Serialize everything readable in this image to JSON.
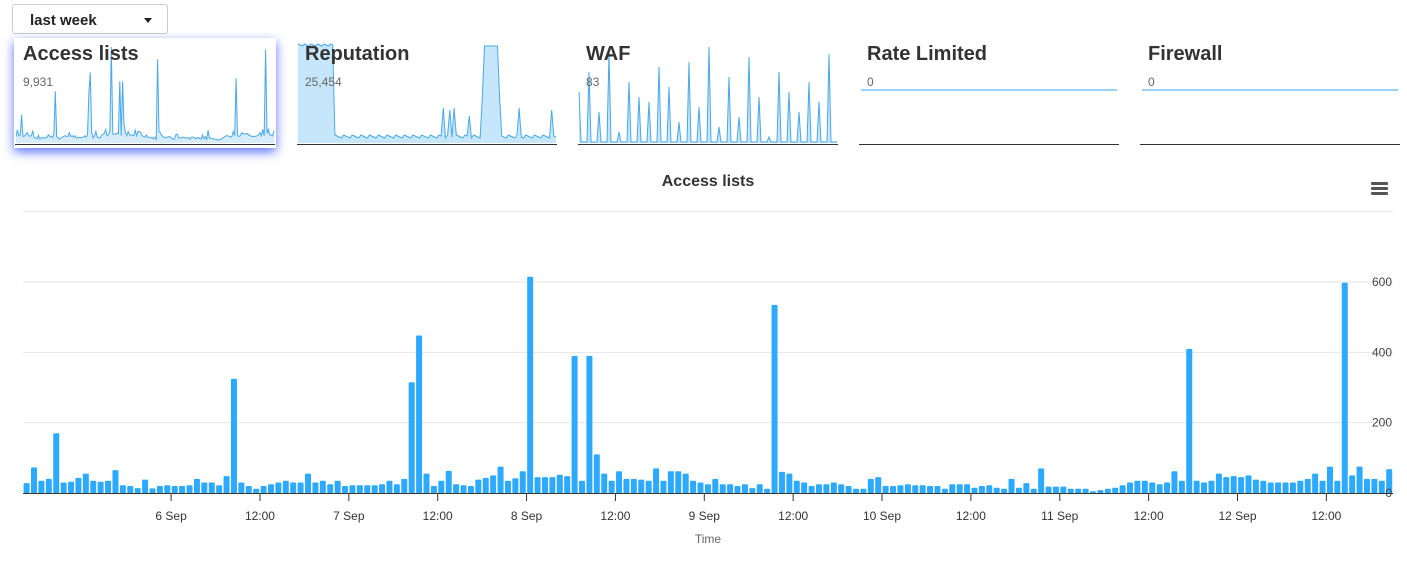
{
  "period_select": {
    "selected": "last week"
  },
  "cards": [
    {
      "title": "Access lists",
      "value": "9,931"
    },
    {
      "title": "Reputation",
      "value": "25,454"
    },
    {
      "title": "WAF",
      "value": "83"
    },
    {
      "title": "Rate Limited",
      "value": "0"
    },
    {
      "title": "Firewall",
      "value": "0"
    }
  ],
  "colors": {
    "accent": "#2daaff",
    "fill": "#c6e6fb",
    "line": "#4aa8e8",
    "selected_shadow": "#2846ff"
  },
  "icons": {
    "menu": "hamburger-menu-icon",
    "dropdown": "caret-down-icon"
  },
  "chart_data": {
    "type": "bar",
    "title": "Access lists",
    "xlabel": "Time",
    "ylabel": "",
    "ylim": [
      0,
      800
    ],
    "yticks": [
      0,
      200,
      400,
      600
    ],
    "y_axis_position": "right",
    "grid": true,
    "x_tick_labels": [
      "6 Sep",
      "12:00",
      "7 Sep",
      "12:00",
      "8 Sep",
      "12:00",
      "9 Sep",
      "12:00",
      "10 Sep",
      "12:00",
      "11 Sep",
      "12:00",
      "12 Sep",
      "12:00"
    ],
    "x_start": "2020-09-05 04:00",
    "interval_hours": 1,
    "values": [
      28,
      73,
      35,
      40,
      170,
      30,
      32,
      43,
      55,
      35,
      32,
      35,
      65,
      22,
      20,
      14,
      38,
      13,
      20,
      22,
      20,
      20,
      22,
      40,
      30,
      30,
      22,
      48,
      325,
      30,
      20,
      12,
      20,
      25,
      30,
      35,
      30,
      30,
      55,
      30,
      35,
      25,
      35,
      20,
      22,
      22,
      22,
      22,
      25,
      35,
      25,
      40,
      315,
      448,
      55,
      20,
      35,
      63,
      25,
      22,
      20,
      38,
      43,
      50,
      75,
      35,
      42,
      62,
      615,
      45,
      45,
      45,
      52,
      48,
      390,
      35,
      390,
      110,
      55,
      35,
      62,
      40,
      40,
      38,
      35,
      70,
      35,
      62,
      62,
      55,
      35,
      30,
      25,
      40,
      25,
      25,
      20,
      25,
      14,
      25,
      12,
      535,
      60,
      55,
      35,
      30,
      20,
      25,
      25,
      30,
      25,
      20,
      12,
      12,
      40,
      45,
      20,
      20,
      22,
      25,
      22,
      22,
      20,
      20,
      12,
      25,
      25,
      25,
      15,
      20,
      22,
      15,
      12,
      40,
      15,
      28,
      12,
      70,
      18,
      18,
      18,
      12,
      12,
      12,
      5,
      8,
      12,
      15,
      22,
      30,
      35,
      35,
      30,
      25,
      30,
      62,
      35,
      410,
      35,
      30,
      35,
      55,
      45,
      48,
      45,
      50,
      38,
      35,
      30,
      30,
      30,
      30,
      35,
      40,
      55,
      35,
      75,
      35,
      598,
      50,
      75,
      40,
      40,
      35,
      68
    ]
  }
}
